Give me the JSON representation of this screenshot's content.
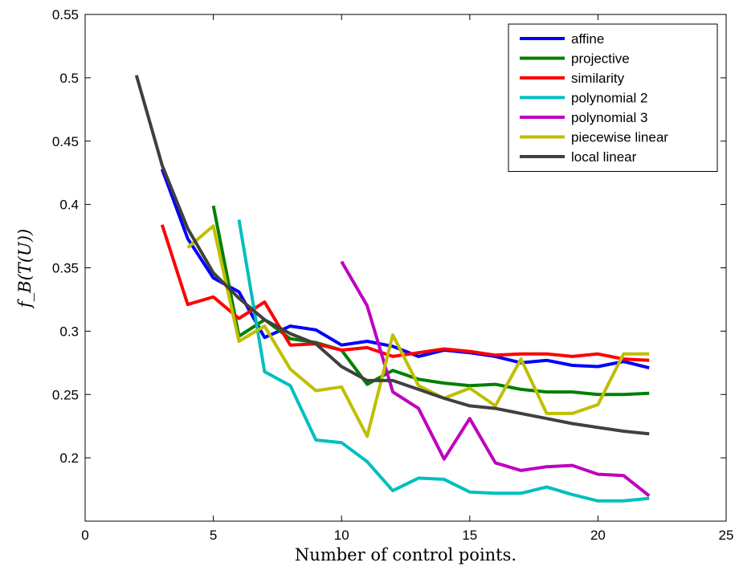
{
  "chart_data": {
    "type": "line",
    "title": "",
    "xlabel": "Number of control points.",
    "ylabel": "f_B(T(U))",
    "xlim": [
      0,
      25
    ],
    "ylim": [
      0.15,
      0.55
    ],
    "xticks": [
      0,
      5,
      10,
      15,
      20,
      25
    ],
    "yticks": [
      0.2,
      0.25,
      0.3,
      0.35,
      0.4,
      0.45,
      0.5,
      0.55
    ],
    "xtick_labels": [
      "0",
      "5",
      "10",
      "15",
      "20",
      "25"
    ],
    "ytick_labels": [
      "0.2",
      "0.25",
      "0.3",
      "0.35",
      "0.4",
      "0.45",
      "0.5",
      "0.55"
    ],
    "grid": false,
    "legend_position": "top-right",
    "series": [
      {
        "name": "affine",
        "color": "#0000ff",
        "points": [
          [
            3,
            0.428
          ],
          [
            4,
            0.373
          ],
          [
            5,
            0.342
          ],
          [
            6,
            0.331
          ],
          [
            7,
            0.295
          ],
          [
            8,
            0.304
          ],
          [
            9,
            0.301
          ],
          [
            10,
            0.289
          ],
          [
            11,
            0.292
          ],
          [
            12,
            0.288
          ],
          [
            13,
            0.28
          ],
          [
            14,
            0.285
          ],
          [
            15,
            0.283
          ],
          [
            16,
            0.28
          ],
          [
            17,
            0.275
          ],
          [
            18,
            0.277
          ],
          [
            19,
            0.273
          ],
          [
            20,
            0.272
          ],
          [
            21,
            0.276
          ],
          [
            22,
            0.271
          ]
        ]
      },
      {
        "name": "projective",
        "color": "#007f00",
        "points": [
          [
            5,
            0.399
          ],
          [
            6,
            0.296
          ],
          [
            7,
            0.309
          ],
          [
            8,
            0.294
          ],
          [
            9,
            0.291
          ],
          [
            10,
            0.285
          ],
          [
            11,
            0.258
          ],
          [
            12,
            0.269
          ],
          [
            13,
            0.262
          ],
          [
            14,
            0.259
          ],
          [
            15,
            0.257
          ],
          [
            16,
            0.258
          ],
          [
            17,
            0.254
          ],
          [
            18,
            0.252
          ],
          [
            19,
            0.252
          ],
          [
            20,
            0.25
          ],
          [
            21,
            0.25
          ],
          [
            22,
            0.251
          ]
        ]
      },
      {
        "name": "similarity",
        "color": "#ff0000",
        "points": [
          [
            3,
            0.384
          ],
          [
            4,
            0.321
          ],
          [
            5,
            0.327
          ],
          [
            6,
            0.31
          ],
          [
            7,
            0.323
          ],
          [
            8,
            0.289
          ],
          [
            9,
            0.29
          ],
          [
            10,
            0.285
          ],
          [
            11,
            0.287
          ],
          [
            12,
            0.28
          ],
          [
            13,
            0.283
          ],
          [
            14,
            0.286
          ],
          [
            15,
            0.284
          ],
          [
            16,
            0.281
          ],
          [
            17,
            0.282
          ],
          [
            18,
            0.282
          ],
          [
            19,
            0.28
          ],
          [
            20,
            0.282
          ],
          [
            21,
            0.278
          ],
          [
            22,
            0.277
          ]
        ]
      },
      {
        "name": "polynomial 2",
        "color": "#00bfbf",
        "points": [
          [
            6,
            0.388
          ],
          [
            7,
            0.268
          ],
          [
            8,
            0.257
          ],
          [
            9,
            0.214
          ],
          [
            10,
            0.212
          ],
          [
            11,
            0.197
          ],
          [
            12,
            0.174
          ],
          [
            13,
            0.184
          ],
          [
            14,
            0.183
          ],
          [
            15,
            0.173
          ],
          [
            16,
            0.172
          ],
          [
            17,
            0.172
          ],
          [
            18,
            0.177
          ],
          [
            19,
            0.171
          ],
          [
            20,
            0.166
          ],
          [
            21,
            0.166
          ],
          [
            22,
            0.168
          ]
        ]
      },
      {
        "name": "polynomial 3",
        "color": "#bf00bf",
        "points": [
          [
            10,
            0.355
          ],
          [
            11,
            0.32
          ],
          [
            12,
            0.252
          ],
          [
            13,
            0.239
          ],
          [
            14,
            0.199
          ],
          [
            15,
            0.231
          ],
          [
            16,
            0.196
          ],
          [
            17,
            0.19
          ],
          [
            18,
            0.193
          ],
          [
            19,
            0.194
          ],
          [
            20,
            0.187
          ],
          [
            21,
            0.186
          ],
          [
            22,
            0.17
          ]
        ]
      },
      {
        "name": "piecewise linear",
        "color": "#bfbf00",
        "points": [
          [
            4,
            0.366
          ],
          [
            5,
            0.383
          ],
          [
            6,
            0.292
          ],
          [
            7,
            0.304
          ],
          [
            8,
            0.27
          ],
          [
            9,
            0.253
          ],
          [
            10,
            0.256
          ],
          [
            11,
            0.217
          ],
          [
            12,
            0.297
          ],
          [
            13,
            0.257
          ],
          [
            14,
            0.247
          ],
          [
            15,
            0.255
          ],
          [
            16,
            0.241
          ],
          [
            17,
            0.278
          ],
          [
            18,
            0.235
          ],
          [
            19,
            0.235
          ],
          [
            20,
            0.242
          ],
          [
            21,
            0.282
          ],
          [
            22,
            0.282
          ]
        ]
      },
      {
        "name": "local linear",
        "color": "#404040",
        "points": [
          [
            2,
            0.502
          ],
          [
            3,
            0.431
          ],
          [
            4,
            0.381
          ],
          [
            5,
            0.346
          ],
          [
            6,
            0.326
          ],
          [
            7,
            0.309
          ],
          [
            8,
            0.298
          ],
          [
            9,
            0.29
          ],
          [
            10,
            0.272
          ],
          [
            11,
            0.261
          ],
          [
            12,
            0.261
          ],
          [
            13,
            0.254
          ],
          [
            14,
            0.247
          ],
          [
            15,
            0.241
          ],
          [
            16,
            0.239
          ],
          [
            17,
            0.235
          ],
          [
            18,
            0.231
          ],
          [
            19,
            0.227
          ],
          [
            20,
            0.224
          ],
          [
            21,
            0.221
          ],
          [
            22,
            0.219
          ]
        ]
      }
    ]
  }
}
